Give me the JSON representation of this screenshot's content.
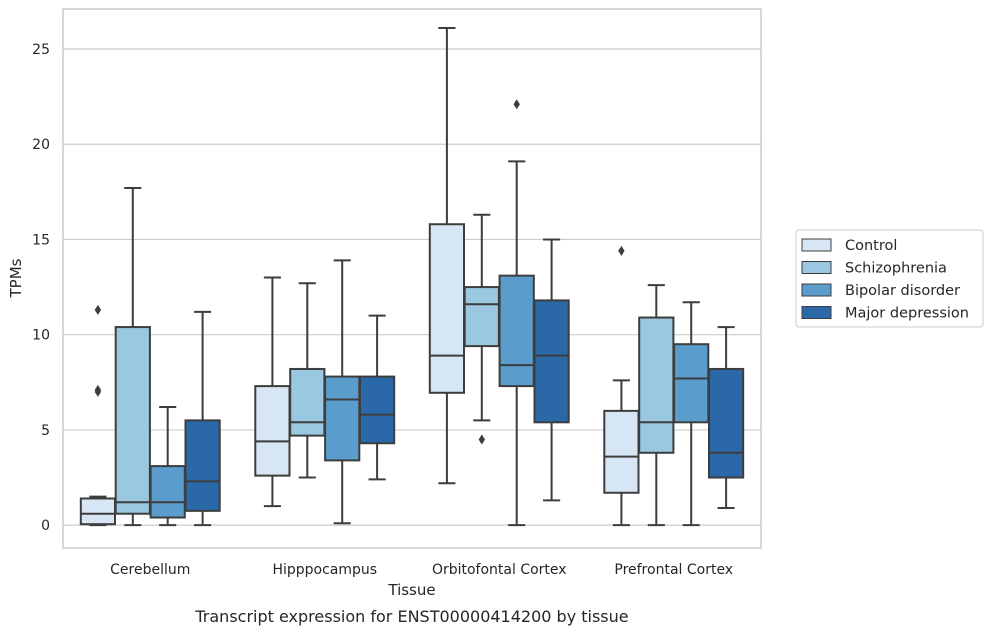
{
  "caption": "Transcript expression for ENST00000414200 by tissue",
  "chart_data": {
    "type": "boxplot",
    "xlabel": "Tissue",
    "ylabel": "TPMs",
    "ylim": [
      -1.2,
      27.1
    ],
    "yticks": [
      0,
      5,
      10,
      15,
      20,
      25
    ],
    "grid": true,
    "legend_position": "right",
    "categories": [
      "Cerebellum",
      "Hipppocampus",
      "Orbitofontal Cortex",
      "Prefrontal Cortex"
    ],
    "series": [
      {
        "name": "Control",
        "color": "#d6e6f4",
        "boxes": [
          {
            "whislo": 0.0,
            "q1": 0.05,
            "med": 0.6,
            "q3": 1.4,
            "whishi": 1.5,
            "fliers": [
              7.0,
              7.1,
              11.3
            ]
          },
          {
            "whislo": 1.0,
            "q1": 2.6,
            "med": 4.4,
            "q3": 7.3,
            "whishi": 13.0,
            "fliers": []
          },
          {
            "whislo": 2.2,
            "q1": 6.95,
            "med": 8.9,
            "q3": 15.8,
            "whishi": 26.1,
            "fliers": []
          },
          {
            "whislo": 0.0,
            "q1": 1.7,
            "med": 3.6,
            "q3": 6.0,
            "whishi": 7.6,
            "fliers": [
              14.4
            ]
          }
        ]
      },
      {
        "name": "Schizophrenia",
        "color": "#9ac8e0",
        "boxes": [
          {
            "whislo": 0.0,
            "q1": 0.6,
            "med": 1.2,
            "q3": 10.4,
            "whishi": 17.7,
            "fliers": []
          },
          {
            "whislo": 2.5,
            "q1": 4.7,
            "med": 5.4,
            "q3": 8.2,
            "whishi": 12.7,
            "fliers": []
          },
          {
            "whislo": 5.5,
            "q1": 9.4,
            "med": 11.6,
            "q3": 12.5,
            "whishi": 16.3,
            "fliers": [
              4.5
            ]
          },
          {
            "whislo": 0.0,
            "q1": 3.8,
            "med": 5.4,
            "q3": 10.9,
            "whishi": 12.6,
            "fliers": []
          }
        ]
      },
      {
        "name": "Bipolar disorder",
        "color": "#5a9dcd",
        "boxes": [
          {
            "whislo": 0.0,
            "q1": 0.4,
            "med": 1.2,
            "q3": 3.1,
            "whishi": 6.2,
            "fliers": []
          },
          {
            "whislo": 0.1,
            "q1": 3.4,
            "med": 6.6,
            "q3": 7.8,
            "whishi": 13.9,
            "fliers": []
          },
          {
            "whislo": 0.0,
            "q1": 7.3,
            "med": 8.4,
            "q3": 13.1,
            "whishi": 19.1,
            "fliers": [
              22.1
            ]
          },
          {
            "whislo": 0.0,
            "q1": 5.4,
            "med": 7.7,
            "q3": 9.5,
            "whishi": 11.7,
            "fliers": []
          }
        ]
      },
      {
        "name": "Major depression",
        "color": "#2a68a8",
        "boxes": [
          {
            "whislo": 0.0,
            "q1": 0.75,
            "med": 2.3,
            "q3": 5.5,
            "whishi": 11.2,
            "fliers": []
          },
          {
            "whislo": 2.4,
            "q1": 4.3,
            "med": 5.8,
            "q3": 7.8,
            "whishi": 11.0,
            "fliers": []
          },
          {
            "whislo": 1.3,
            "q1": 5.4,
            "med": 8.9,
            "q3": 11.8,
            "whishi": 15.0,
            "fliers": []
          },
          {
            "whislo": 0.9,
            "q1": 2.5,
            "med": 3.8,
            "q3": 8.2,
            "whishi": 10.4,
            "fliers": []
          }
        ]
      }
    ]
  }
}
